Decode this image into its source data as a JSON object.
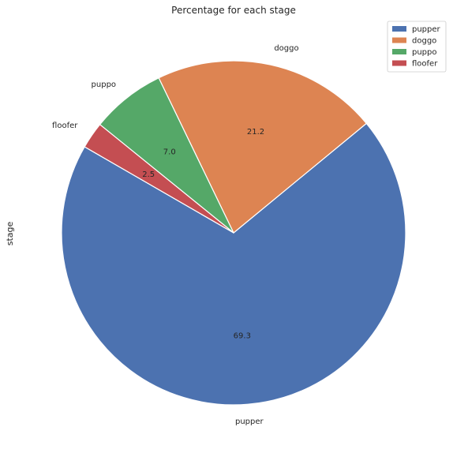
{
  "chart_data": {
    "type": "pie",
    "title": "Percentage for each stage",
    "ylabel": "stage",
    "slices": [
      {
        "label": "pupper",
        "value": 69.3,
        "pct_label": "69.3",
        "color": "#4c72b0"
      },
      {
        "label": "doggo",
        "value": 21.2,
        "pct_label": "21.2",
        "color": "#dd8452"
      },
      {
        "label": "puppo",
        "value": 7.0,
        "pct_label": "7.0",
        "color": "#55a868"
      },
      {
        "label": "floofer",
        "value": 2.5,
        "pct_label": "2.5",
        "color": "#c44e52"
      }
    ],
    "start_angle_deg": 150,
    "direction": "counterclockwise",
    "legend_position": "top-right",
    "legend_entries": [
      "pupper",
      "doggo",
      "puppo",
      "floofer"
    ]
  }
}
